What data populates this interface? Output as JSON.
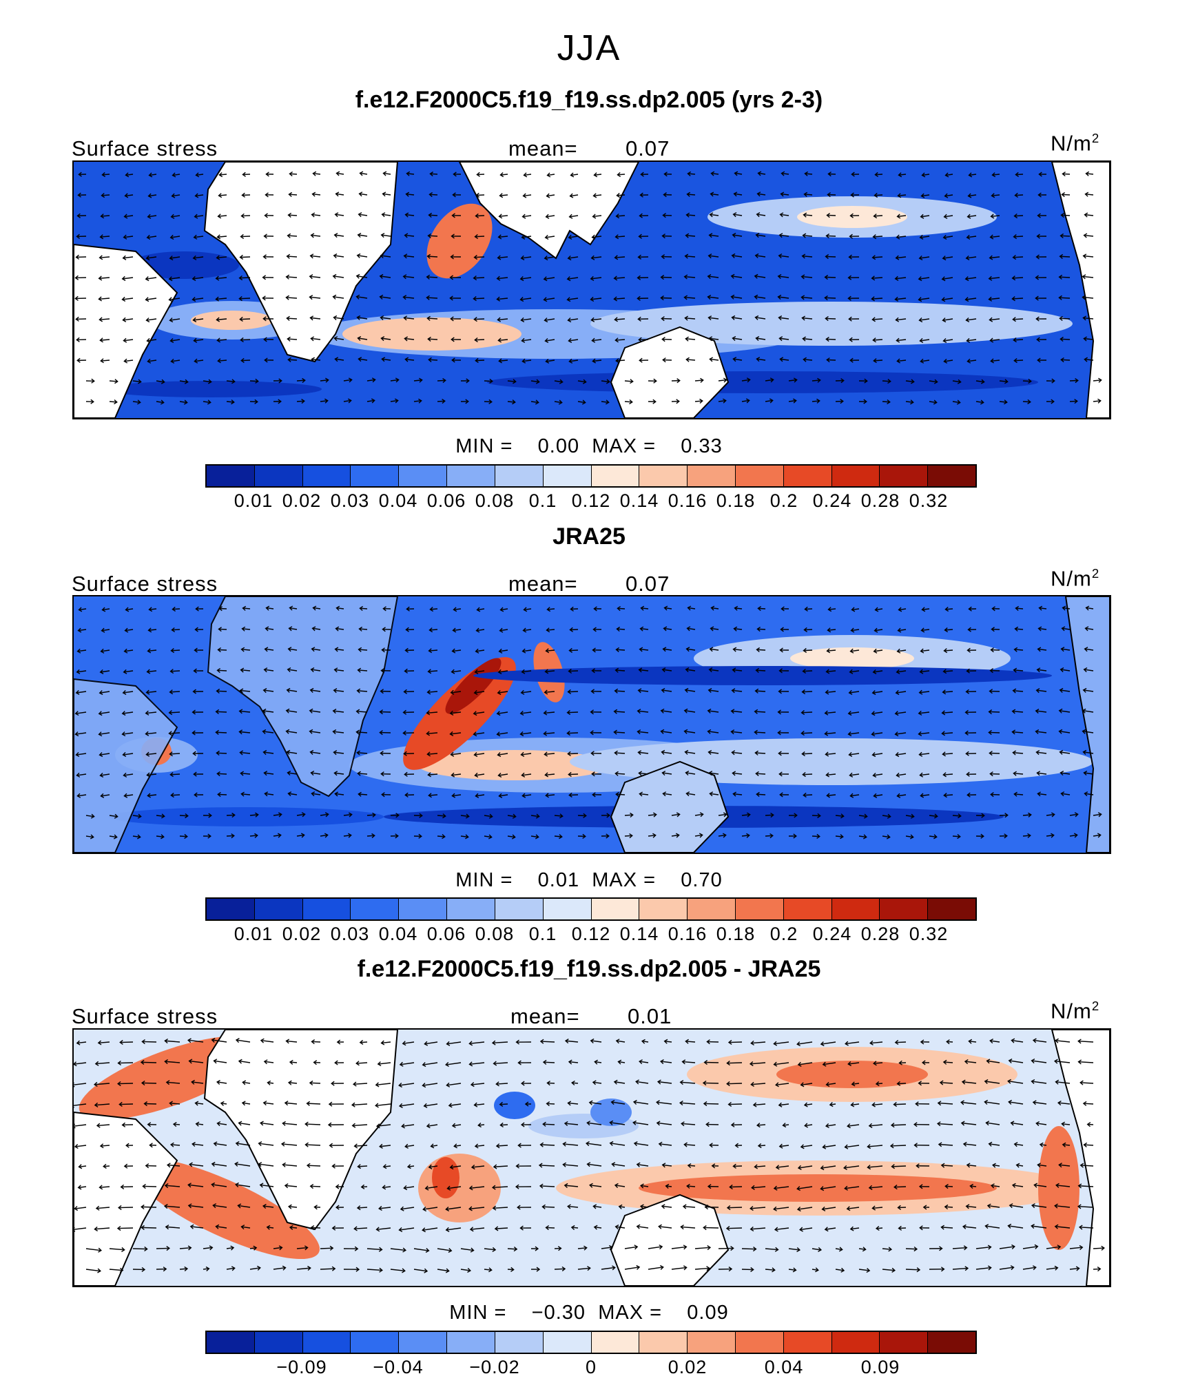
{
  "title": "JJA",
  "colors": [
    "#08209a",
    "#0b36c0",
    "#1650e0",
    "#2e6cf0",
    "#5a8ef5",
    "#87aef7",
    "#b5cdf7",
    "#dbe8fa",
    "#fde8d8",
    "#fbc9ac",
    "#f7a27d",
    "#f2764e",
    "#e74a26",
    "#cf2a10",
    "#a9160a",
    "#7a0c05"
  ],
  "panels": [
    {
      "title": "f.e12.F2000C5.f19_f19.ss.dp2.005 (yrs 2-3)",
      "variable": "Surface stress",
      "mean_label": "mean=",
      "mean_value": "0.07",
      "units": "N/m",
      "units_exp": "2",
      "min_label": "MIN =",
      "min_value": "0.00",
      "max_label": "MAX =",
      "max_value": "0.33",
      "colorbar_ticks": [
        "0.01",
        "0.02",
        "0.03",
        "0.04",
        "0.06",
        "0.08",
        "0.1",
        "0.12",
        "0.14",
        "0.16",
        "0.18",
        "0.2",
        "0.24",
        "0.28",
        "0.32"
      ]
    },
    {
      "title": "JRA25",
      "variable": "Surface stress",
      "mean_label": "mean=",
      "mean_value": "0.07",
      "units": "N/m",
      "units_exp": "2",
      "min_label": "MIN =",
      "min_value": "0.01",
      "max_label": "MAX =",
      "max_value": "0.70",
      "colorbar_ticks": [
        "0.01",
        "0.02",
        "0.03",
        "0.04",
        "0.06",
        "0.08",
        "0.1",
        "0.12",
        "0.14",
        "0.16",
        "0.18",
        "0.2",
        "0.24",
        "0.28",
        "0.32"
      ]
    },
    {
      "title": "f.e12.F2000C5.f19_f19.ss.dp2.005 - JRA25",
      "variable": "Surface stress",
      "mean_label": "mean=",
      "mean_value": "0.01",
      "units": "N/m",
      "units_exp": "2",
      "min_label": "MIN =",
      "min_value": "−0.30",
      "max_label": "MAX =",
      "max_value": "0.09",
      "colorbar_ticks": [
        "",
        "−0.09",
        "",
        "−0.04",
        "",
        "−0.02",
        "",
        "0",
        "",
        "0.02",
        "",
        "0.04",
        "",
        "0.09",
        ""
      ]
    }
  ]
}
